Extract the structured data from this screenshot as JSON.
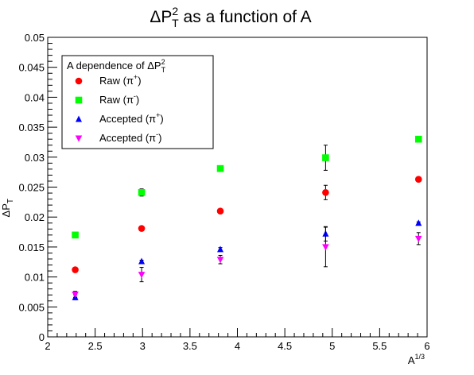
{
  "chart_data": {
    "type": "scatter",
    "title": {
      "prefix": "ΔP",
      "sup": "2",
      "sub": "T",
      "suffix": " as a function of A"
    },
    "xlabel": {
      "base": "A",
      "sup": "1/3"
    },
    "ylabel": {
      "base": "ΔP",
      "sub": "T"
    },
    "xlim": [
      2,
      6
    ],
    "ylim": [
      0,
      0.05
    ],
    "x_major_ticks": [
      2,
      2.5,
      3,
      3.5,
      4,
      4.5,
      5,
      5.5,
      6
    ],
    "x_tick_labels": [
      "2",
      "2.5",
      "3",
      "3.5",
      "4",
      "4.5",
      "5",
      "5.5",
      "6"
    ],
    "y_major_ticks": [
      0,
      0.005,
      0.01,
      0.015,
      0.02,
      0.025,
      0.03,
      0.035,
      0.04,
      0.045,
      0.05
    ],
    "y_tick_labels": [
      "0",
      "0.005",
      "0.01",
      "0.015",
      "0.02",
      "0.025",
      "0.03",
      "0.035",
      "0.04",
      "0.045",
      "0.05"
    ],
    "grid": false,
    "legend": {
      "title": {
        "prefix": "A dependence of ΔP",
        "sup": "2",
        "sub": "T"
      },
      "placement": "top-left"
    },
    "x": [
      2.29,
      2.99,
      3.82,
      4.93,
      5.91
    ],
    "series": [
      {
        "name": {
          "base": "Raw (π",
          "sup": "+",
          "tail": ")"
        },
        "marker": "circle",
        "color": "#ff0000",
        "values": [
          0.0112,
          0.0181,
          0.021,
          0.0241,
          0.0263
        ],
        "errors": [
          0.0002,
          0.0003,
          0.0003,
          0.0012,
          0.0003
        ]
      },
      {
        "name": {
          "base": "Raw (π",
          "sup": "-",
          "tail": ")"
        },
        "marker": "square",
        "color": "#00ff00",
        "values": [
          0.017,
          0.0241,
          0.0281,
          0.0299,
          0.033
        ],
        "errors": [
          0.0002,
          0.0006,
          0.0002,
          0.0021,
          0.0004
        ]
      },
      {
        "name": {
          "base": "Accepted (π",
          "sup": "+",
          "tail": ")"
        },
        "marker": "triangle-up",
        "color": "#0000ff",
        "values": [
          0.0066,
          0.0126,
          0.0146,
          0.0172,
          0.019
        ],
        "errors": [
          0.0004,
          0.0002,
          0.0003,
          0.0012,
          0.0002
        ]
      },
      {
        "name": {
          "base": "Accepted (π",
          "sup": "-",
          "tail": ")"
        },
        "marker": "triangle-down",
        "color": "#ff00ff",
        "values": [
          0.0071,
          0.0104,
          0.0129,
          0.015,
          0.0164
        ],
        "errors": [
          0.0005,
          0.0012,
          0.0007,
          0.0033,
          0.001
        ]
      }
    ]
  }
}
